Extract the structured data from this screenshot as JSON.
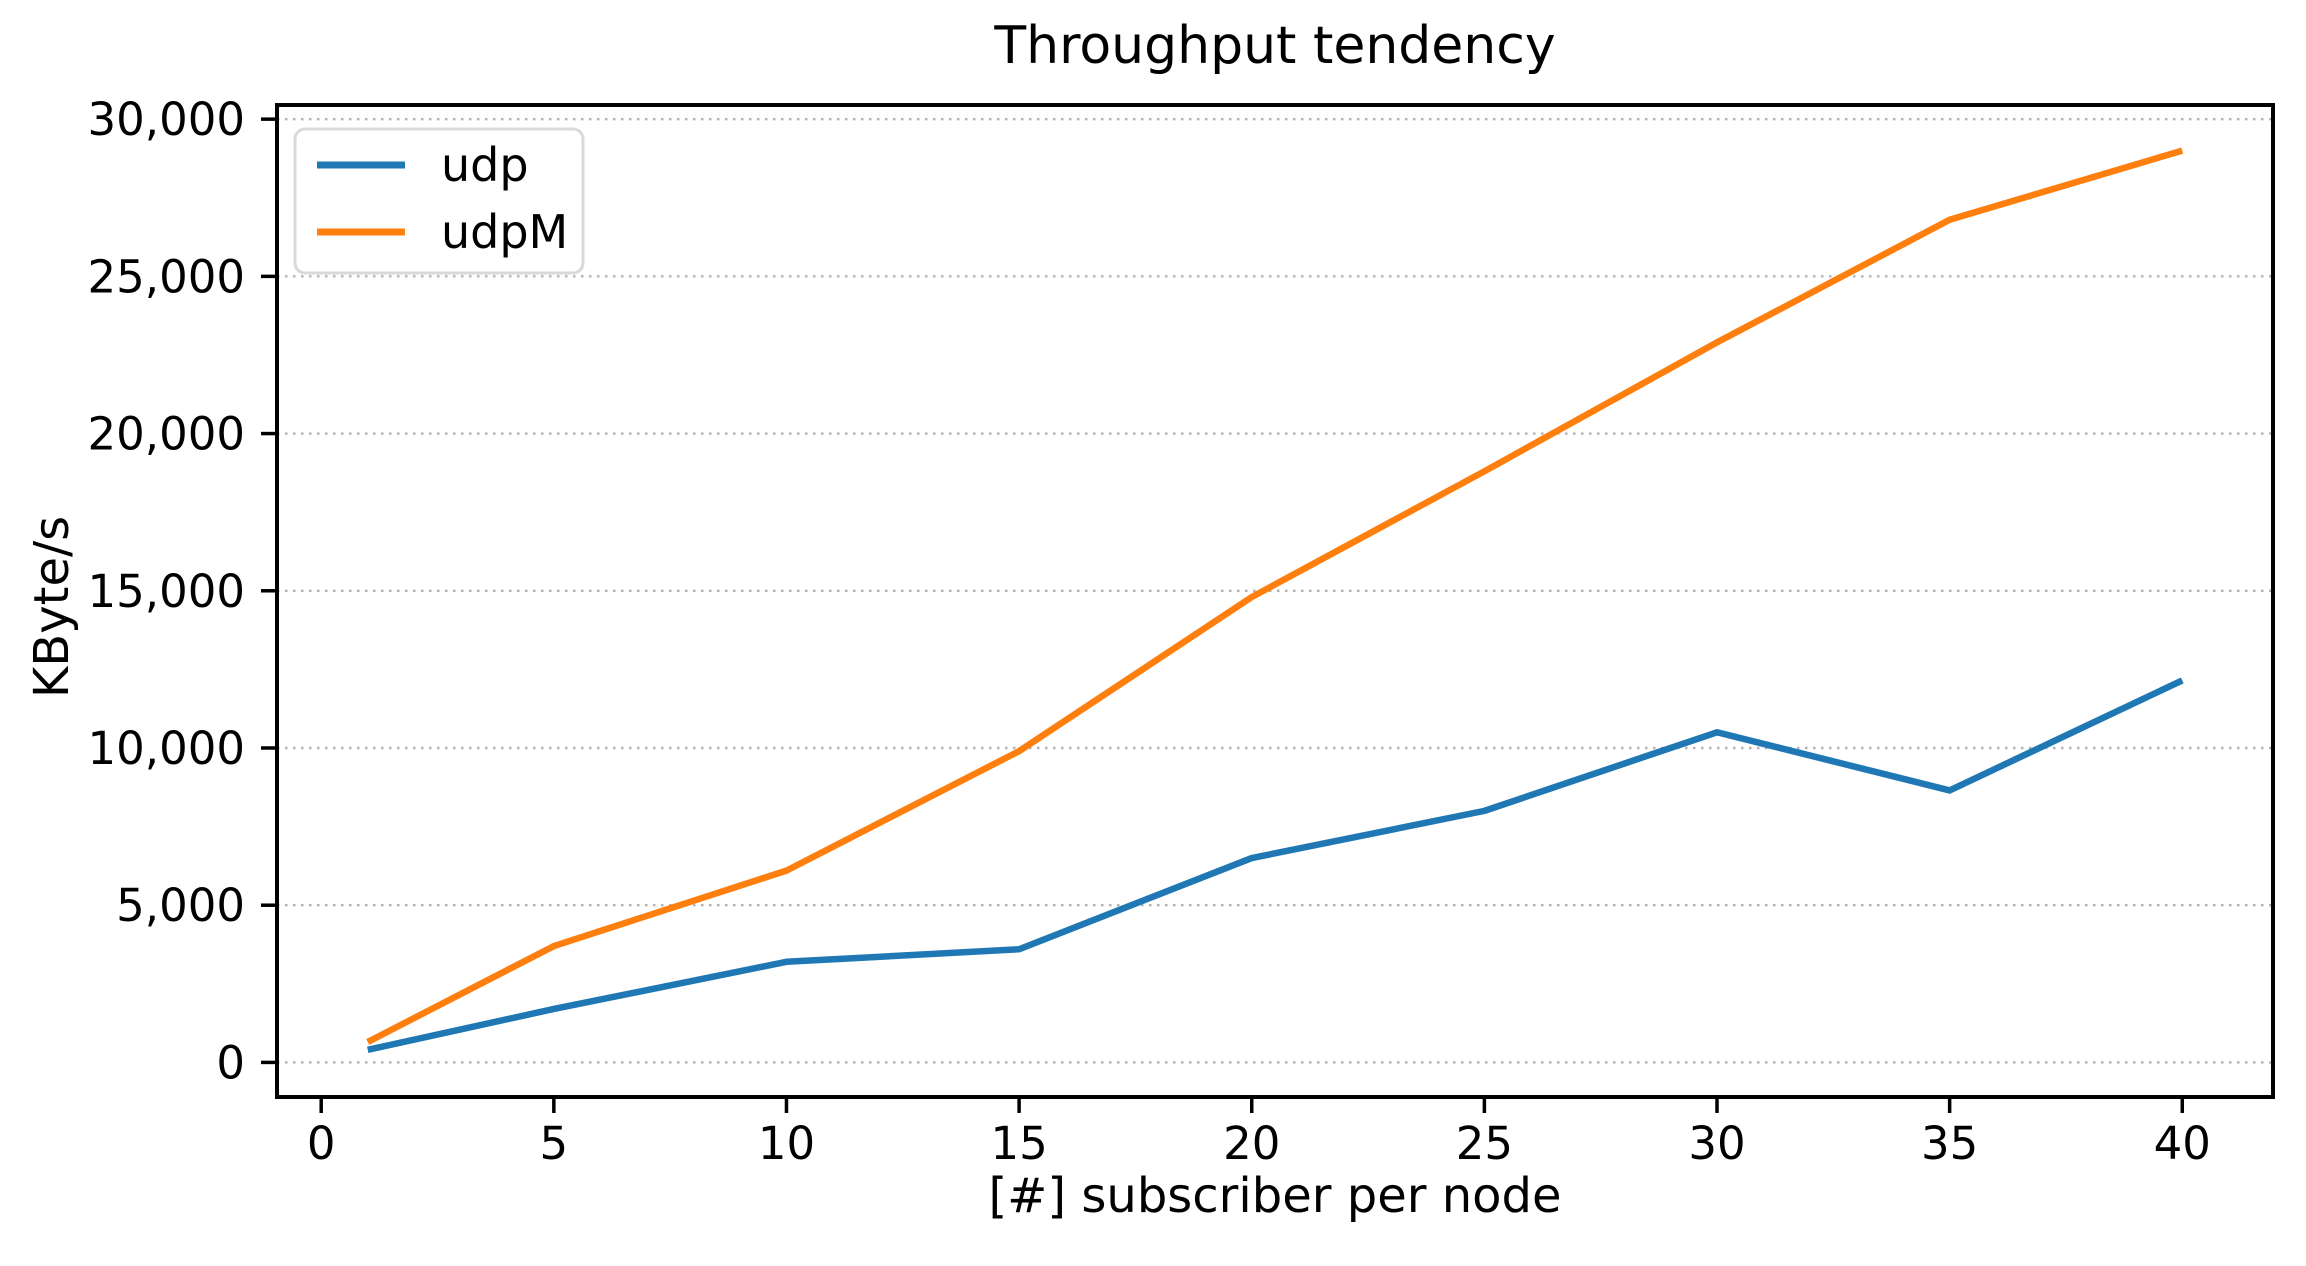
{
  "chart_data": {
    "type": "line",
    "title": "Throughput tendency",
    "xlabel": "[#] subscriber per node",
    "ylabel": "KByte/s",
    "x": [
      1,
      5,
      10,
      15,
      20,
      25,
      30,
      35,
      40
    ],
    "series": [
      {
        "name": "udp",
        "color": "#1f77b4",
        "values": [
          400,
          1700,
          3200,
          3600,
          6500,
          8000,
          10500,
          8650,
          12150
        ]
      },
      {
        "name": "udpM",
        "color": "#ff7f0e",
        "values": [
          650,
          3700,
          6100,
          9900,
          14800,
          18800,
          22900,
          26800,
          29000
        ]
      }
    ],
    "xticks": [
      0,
      5,
      10,
      15,
      20,
      25,
      30,
      35,
      40
    ],
    "xtick_labels": [
      "0",
      "5",
      "10",
      "15",
      "20",
      "25",
      "30",
      "35",
      "40"
    ],
    "yticks": [
      0,
      5000,
      10000,
      15000,
      20000,
      25000,
      30000
    ],
    "ytick_labels": [
      "0",
      "5,000",
      "10,000",
      "15,000",
      "20,000",
      "25,000",
      "30,000"
    ],
    "xlim": [
      -0.95,
      41.95
    ],
    "ylim": [
      -1100,
      30450
    ],
    "grid": "horizontal-dotted",
    "grid_color": "#b3b3b3",
    "spine_color": "#000000",
    "legend_position": "upper-left"
  }
}
